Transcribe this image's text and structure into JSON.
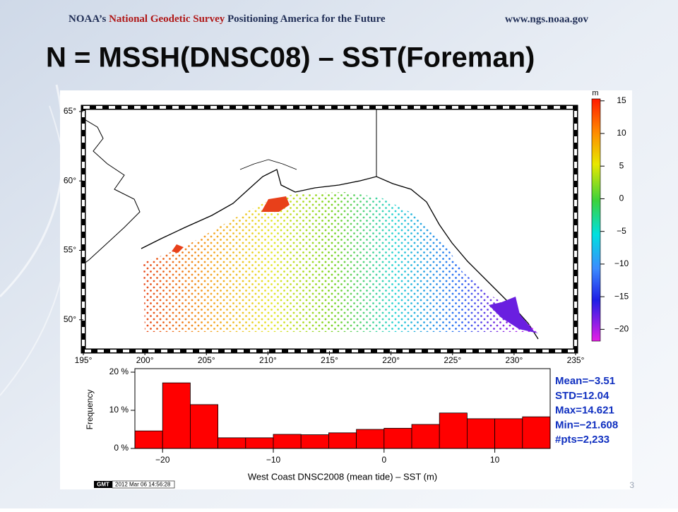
{
  "header": {
    "org_prefix": "NOAA’s",
    "org_name": "National Geodetic Survey",
    "motto": "Positioning America for the Future",
    "url": "www.ngs.noaa.gov"
  },
  "title": "N = MSSH(DNSC08) – SST(Foreman)",
  "chart_data": [
    {
      "type": "map",
      "xlim": [
        195,
        235
      ],
      "xticks": [
        {
          "value": 195,
          "label": "195°"
        },
        {
          "value": 200,
          "label": "200°"
        },
        {
          "value": 205,
          "label": "205°"
        },
        {
          "value": 210,
          "label": "210°"
        },
        {
          "value": 215,
          "label": "215°"
        },
        {
          "value": 220,
          "label": "220°"
        },
        {
          "value": 225,
          "label": "225°"
        },
        {
          "value": 230,
          "label": "230°"
        },
        {
          "value": 235,
          "label": "235°"
        }
      ],
      "ylim": [
        47.75,
        65.3
      ],
      "yticks": [
        {
          "value": 50,
          "label": "50°"
        },
        {
          "value": 55,
          "label": "55°"
        },
        {
          "value": 60,
          "label": "60°"
        },
        {
          "value": 65,
          "label": "65°"
        }
      ],
      "colorbar": {
        "label": "m",
        "lim": [
          -21.8,
          15.3
        ],
        "ticks": [
          15,
          10,
          5,
          0,
          {
            "value": -5,
            "label": "−5"
          },
          {
            "value": -10,
            "label": "−10"
          },
          {
            "value": -15,
            "label": "−15"
          },
          {
            "value": -20,
            "label": "−20"
          }
        ]
      }
    },
    {
      "type": "histogram",
      "xlabel": "West Coast DNSC2008 (mean tide) – SST (m)",
      "ylabel": "Frequency",
      "bins": [
        -22.5,
        -20,
        -17.5,
        -15,
        -12.5,
        -10,
        -7.5,
        -5,
        -2.5,
        0,
        2.5,
        5,
        7.5,
        10,
        12.5,
        15
      ],
      "values": [
        4.6,
        17.2,
        11.5,
        2.8,
        2.8,
        3.7,
        3.6,
        4.1,
        5.0,
        5.3,
        6.3,
        9.3,
        7.8,
        7.8,
        8.3
      ],
      "color": "#ff0000",
      "xlim": [
        -22.5,
        15
      ],
      "xticks": [
        {
          "value": -20,
          "label": "−20"
        },
        {
          "value": -10,
          "label": "−10"
        },
        0,
        10
      ],
      "ylim": [
        0,
        20
      ],
      "yticks": [
        {
          "value": 0,
          "label": "0 %"
        },
        {
          "value": 10,
          "label": "10 %"
        },
        {
          "value": 20,
          "label": "20 %"
        }
      ],
      "annotations": [
        "Mean=−3.51",
        "STD=12.04",
        "Max=14.621",
        "Min=−21.608",
        "#pts=2,233"
      ]
    }
  ],
  "footer": {
    "logo": "GMT",
    "timestamp": "2012 Mar 06 14:56:28",
    "page_number": "3"
  }
}
